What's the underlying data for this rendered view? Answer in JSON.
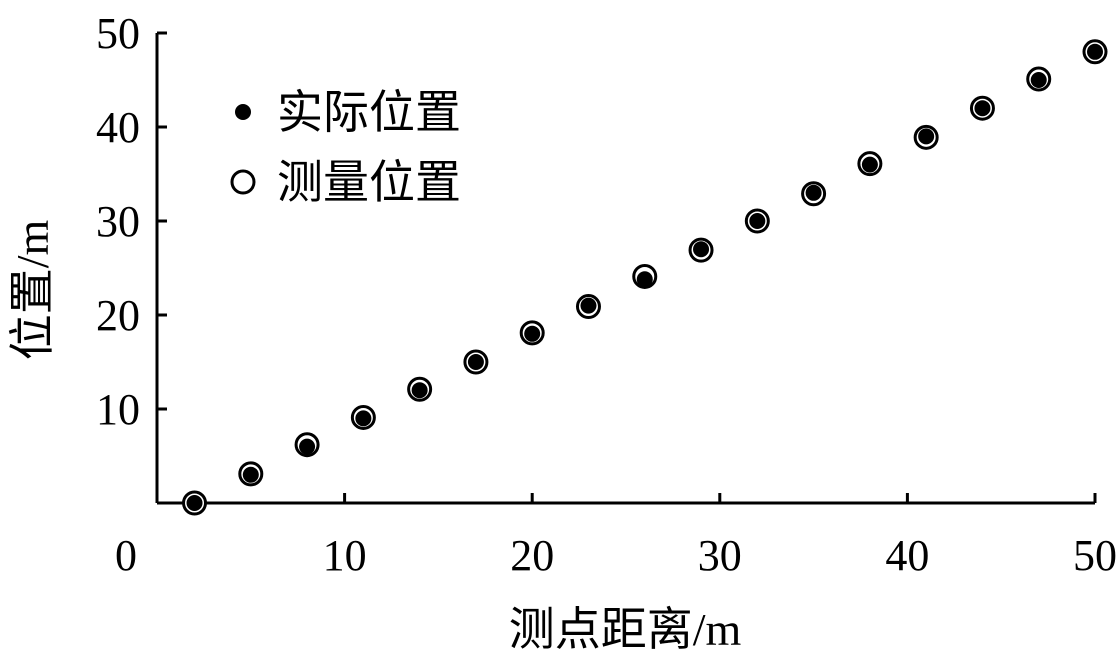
{
  "chart_data": {
    "type": "scatter",
    "xlabel": "测点距离/m",
    "ylabel": "位置/m",
    "xlim": [
      0,
      50
    ],
    "ylim": [
      0,
      50
    ],
    "x_ticks": [
      "0",
      "10",
      "20",
      "30",
      "40",
      "50"
    ],
    "y_ticks": [
      "10",
      "20",
      "30",
      "40",
      "50"
    ],
    "grid": false,
    "legend_position": "top-left",
    "series": [
      {
        "name": "实际位置",
        "marker": "filled-dot",
        "color": "#000000",
        "x": [
          2,
          5,
          8,
          11,
          14,
          17,
          20,
          23,
          26,
          29,
          32,
          35,
          38,
          41,
          44,
          47,
          50
        ],
        "y": [
          0,
          3,
          6,
          9,
          12,
          15,
          18,
          21,
          23.8,
          27,
          30,
          33,
          36,
          39,
          42,
          45,
          48
        ]
      },
      {
        "name": "测量位置",
        "marker": "open-circle",
        "color": "#000000",
        "x": [
          2,
          5,
          8,
          11,
          14,
          17,
          20,
          23,
          26,
          29,
          32,
          35,
          38,
          41,
          44,
          47,
          50
        ],
        "y": [
          0,
          3.1,
          6.2,
          9.1,
          12.1,
          15,
          18.1,
          20.9,
          24.1,
          26.9,
          30,
          32.9,
          36.1,
          38.9,
          42,
          45.1,
          48
        ]
      }
    ]
  }
}
